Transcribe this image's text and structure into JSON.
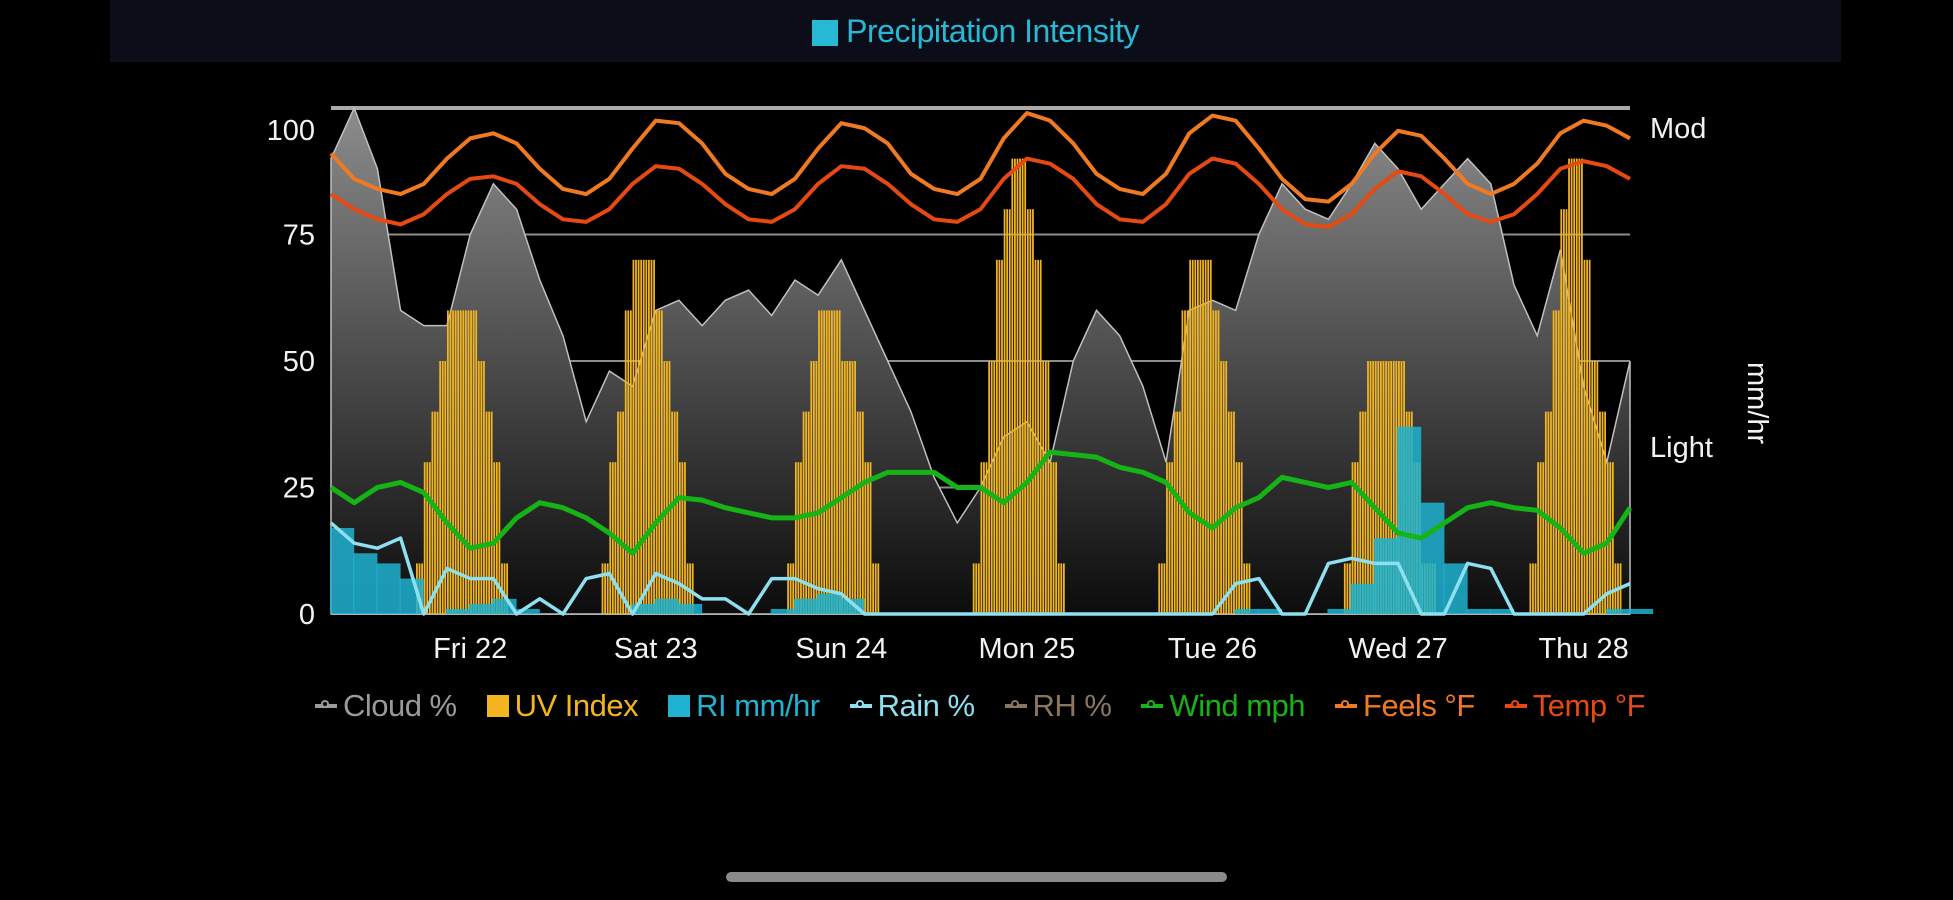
{
  "header": {
    "legend_label": "Precipitation Intensity",
    "legend_color": "#27b8d4"
  },
  "chart_data": {
    "type": "combo",
    "x_unit": "hours from start",
    "xlim": [
      0,
      168
    ],
    "ylim": [
      0,
      100
    ],
    "y_ticks": [
      0,
      25,
      50,
      75,
      100
    ],
    "y_tick_labels": [
      "0",
      "25",
      "50",
      "75",
      "100"
    ],
    "grid": true,
    "right_axis": {
      "label": "mm/hr",
      "ticks": [
        {
          "label": "Light",
          "pos": 33
        },
        {
          "label": "Mod",
          "pos": 96
        }
      ]
    },
    "x_ticks": [
      {
        "label": "Fri 22",
        "hour": 18
      },
      {
        "label": "Sat 23",
        "hour": 42
      },
      {
        "label": "Sun 24",
        "hour": 66
      },
      {
        "label": "Mon 25",
        "hour": 90
      },
      {
        "label": "Tue 26",
        "hour": 114
      },
      {
        "label": "Wed 27",
        "hour": 138
      },
      {
        "label": "Thu 28",
        "hour": 162
      }
    ],
    "sample_step_hours": 3,
    "legend_placement": "bottom",
    "series": [
      {
        "key": "cloud",
        "name": "Cloud %",
        "kind": "area",
        "color": "#9a9a9a",
        "values": [
          90,
          100,
          88,
          60,
          57,
          57,
          75,
          85,
          80,
          66,
          55,
          38,
          48,
          45,
          60,
          62,
          57,
          62,
          64,
          59,
          66,
          63,
          70,
          60,
          50,
          40,
          27,
          18,
          25,
          35,
          38,
          30,
          50,
          60,
          55,
          45,
          30,
          60,
          62,
          60,
          75,
          85,
          80,
          78,
          85,
          93,
          88,
          80,
          85,
          90,
          85,
          65,
          55,
          72,
          45,
          30,
          50
        ]
      },
      {
        "key": "uv",
        "name": "UV Index",
        "kind": "bar",
        "color": "#f2b51f",
        "scale": 10,
        "days": [
          {
            "start_hour": 11,
            "values": [
              1,
              3,
              4,
              5,
              6,
              6,
              6,
              6,
              5,
              4,
              3,
              1
            ]
          },
          {
            "start_hour": 35,
            "values": [
              1,
              3,
              4,
              6,
              7,
              7,
              7,
              6,
              5,
              4,
              3,
              1
            ]
          },
          {
            "start_hour": 59,
            "values": [
              1,
              3,
              4,
              5,
              6,
              6,
              6,
              5,
              5,
              4,
              3,
              1
            ]
          },
          {
            "start_hour": 83,
            "values": [
              1,
              3,
              5,
              7,
              8,
              9,
              9,
              8,
              7,
              5,
              3,
              1
            ]
          },
          {
            "start_hour": 107,
            "values": [
              1,
              3,
              4,
              6,
              7,
              7,
              7,
              6,
              5,
              4,
              3,
              1
            ]
          },
          {
            "start_hour": 131,
            "values": [
              1,
              3,
              4,
              5,
              5,
              5,
              5,
              5,
              4,
              3,
              1,
              1
            ]
          },
          {
            "start_hour": 155,
            "values": [
              1,
              3,
              4,
              6,
              8,
              9,
              9,
              7,
              5,
              4,
              3,
              1
            ]
          }
        ]
      },
      {
        "key": "ri",
        "name": "RI mm/hr",
        "kind": "step-area",
        "color": "#1fb3d1",
        "values": [
          17,
          12,
          10,
          7,
          0,
          1,
          2,
          3,
          1,
          0,
          0,
          0,
          0,
          2,
          3,
          2,
          0,
          0,
          0,
          1,
          3,
          4,
          3,
          0,
          0,
          0,
          0,
          0,
          0,
          0,
          0,
          0,
          0,
          0,
          0,
          0,
          0,
          0,
          0,
          1,
          1,
          0,
          0,
          1,
          6,
          15,
          37,
          22,
          10,
          1,
          1,
          0,
          0,
          0,
          0,
          1,
          1
        ]
      },
      {
        "key": "rain",
        "name": "Rain %",
        "kind": "line",
        "color": "#8ee0f0",
        "values": [
          18,
          14,
          13,
          15,
          0,
          9,
          7,
          7,
          0,
          3,
          0,
          7,
          8,
          0,
          8,
          6,
          3,
          3,
          0,
          7,
          7,
          5,
          4,
          0,
          0,
          0,
          0,
          0,
          0,
          0,
          0,
          0,
          0,
          0,
          0,
          0,
          0,
          0,
          0,
          6,
          7,
          0,
          0,
          10,
          11,
          10,
          10,
          0,
          0,
          10,
          9,
          0,
          0,
          0,
          0,
          4,
          6
        ]
      },
      {
        "key": "rh",
        "name": "RH %",
        "kind": "line",
        "color": "#8a7560",
        "hidden": true,
        "values": []
      },
      {
        "key": "wind",
        "name": "Wind mph",
        "kind": "line",
        "color": "#16b316",
        "values": [
          25,
          22,
          25,
          26,
          24,
          18,
          13,
          14,
          19,
          22,
          21,
          19,
          16,
          12,
          18,
          23,
          22.5,
          21,
          20,
          19,
          19,
          20,
          23,
          26,
          28,
          28,
          28,
          25,
          25,
          22,
          26,
          32,
          31.5,
          31,
          29,
          28,
          26,
          20,
          17,
          21,
          23,
          27,
          26,
          25,
          26,
          21,
          16,
          15,
          18,
          21,
          22,
          21,
          20.5,
          17,
          12,
          14,
          21
        ]
      },
      {
        "key": "feels",
        "name": "Feels °F",
        "kind": "line",
        "color": "#f07a22",
        "values": [
          91,
          86,
          84,
          83,
          85,
          90,
          94,
          95,
          93,
          88,
          84,
          83,
          86,
          92,
          97.5,
          97,
          93,
          87,
          84,
          83,
          86,
          92,
          97,
          96,
          93,
          87,
          84,
          83,
          86,
          94,
          99,
          97.5,
          93,
          87,
          84,
          83,
          87,
          95,
          98.5,
          97.5,
          92,
          86,
          82,
          81.5,
          85,
          91,
          95.5,
          94.5,
          90,
          85,
          83,
          85,
          89,
          95,
          97.5,
          96.5,
          94
        ]
      },
      {
        "key": "temp",
        "name": "Temp °F",
        "kind": "line",
        "color": "#e64a12",
        "values": [
          83,
          80,
          78,
          77,
          79,
          83,
          86,
          86.5,
          85,
          81,
          78,
          77.5,
          80,
          85,
          88.5,
          88,
          85,
          81,
          78,
          77.5,
          80,
          85,
          88.5,
          88,
          85,
          81,
          78,
          77.5,
          80,
          86,
          90,
          89,
          86,
          81,
          78,
          77.5,
          81,
          87,
          90,
          89,
          85,
          80,
          77,
          76.5,
          79,
          84,
          87.5,
          86.5,
          83,
          79,
          77.5,
          79,
          83,
          88,
          89.5,
          88.5,
          86
        ]
      }
    ]
  }
}
